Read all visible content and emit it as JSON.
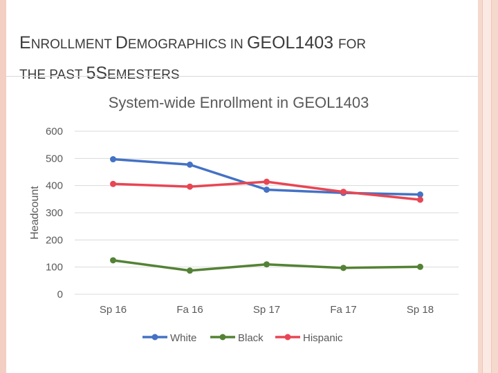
{
  "slide": {
    "title_line1": [
      {
        "t": "E",
        "big": true
      },
      {
        "t": "nrollment ",
        "big": false
      },
      {
        "t": "D",
        "big": true
      },
      {
        "t": "emographics in ",
        "big": false
      },
      {
        "t": "GEOL1403 ",
        "big": true
      },
      {
        "t": "for",
        "big": false
      }
    ],
    "title_line2": [
      {
        "t": "the past ",
        "big": false
      },
      {
        "t": "5S",
        "big": true
      },
      {
        "t": "emesters",
        "big": false
      }
    ]
  },
  "chart_data": {
    "type": "line",
    "title": "System-wide Enrollment in GEOL1403",
    "ylabel": "Headcount",
    "xlabel": "",
    "categories": [
      "Sp 16",
      "Fa 16",
      "Sp 17",
      "Fa 17",
      "Sp 18"
    ],
    "yticks": [
      "0",
      "100",
      "200",
      "300",
      "400",
      "500",
      "600"
    ],
    "ylim": [
      0,
      600
    ],
    "grid": true,
    "legend_position": "bottom",
    "series": [
      {
        "name": "White",
        "color": "#4472c4",
        "values": [
          497,
          477,
          385,
          373,
          367
        ]
      },
      {
        "name": "Black",
        "color": "#548235",
        "values": [
          125,
          87,
          110,
          97,
          101
        ]
      },
      {
        "name": "Hispanic",
        "color": "#e84653",
        "values": [
          406,
          396,
          414,
          377,
          348
        ]
      }
    ]
  }
}
